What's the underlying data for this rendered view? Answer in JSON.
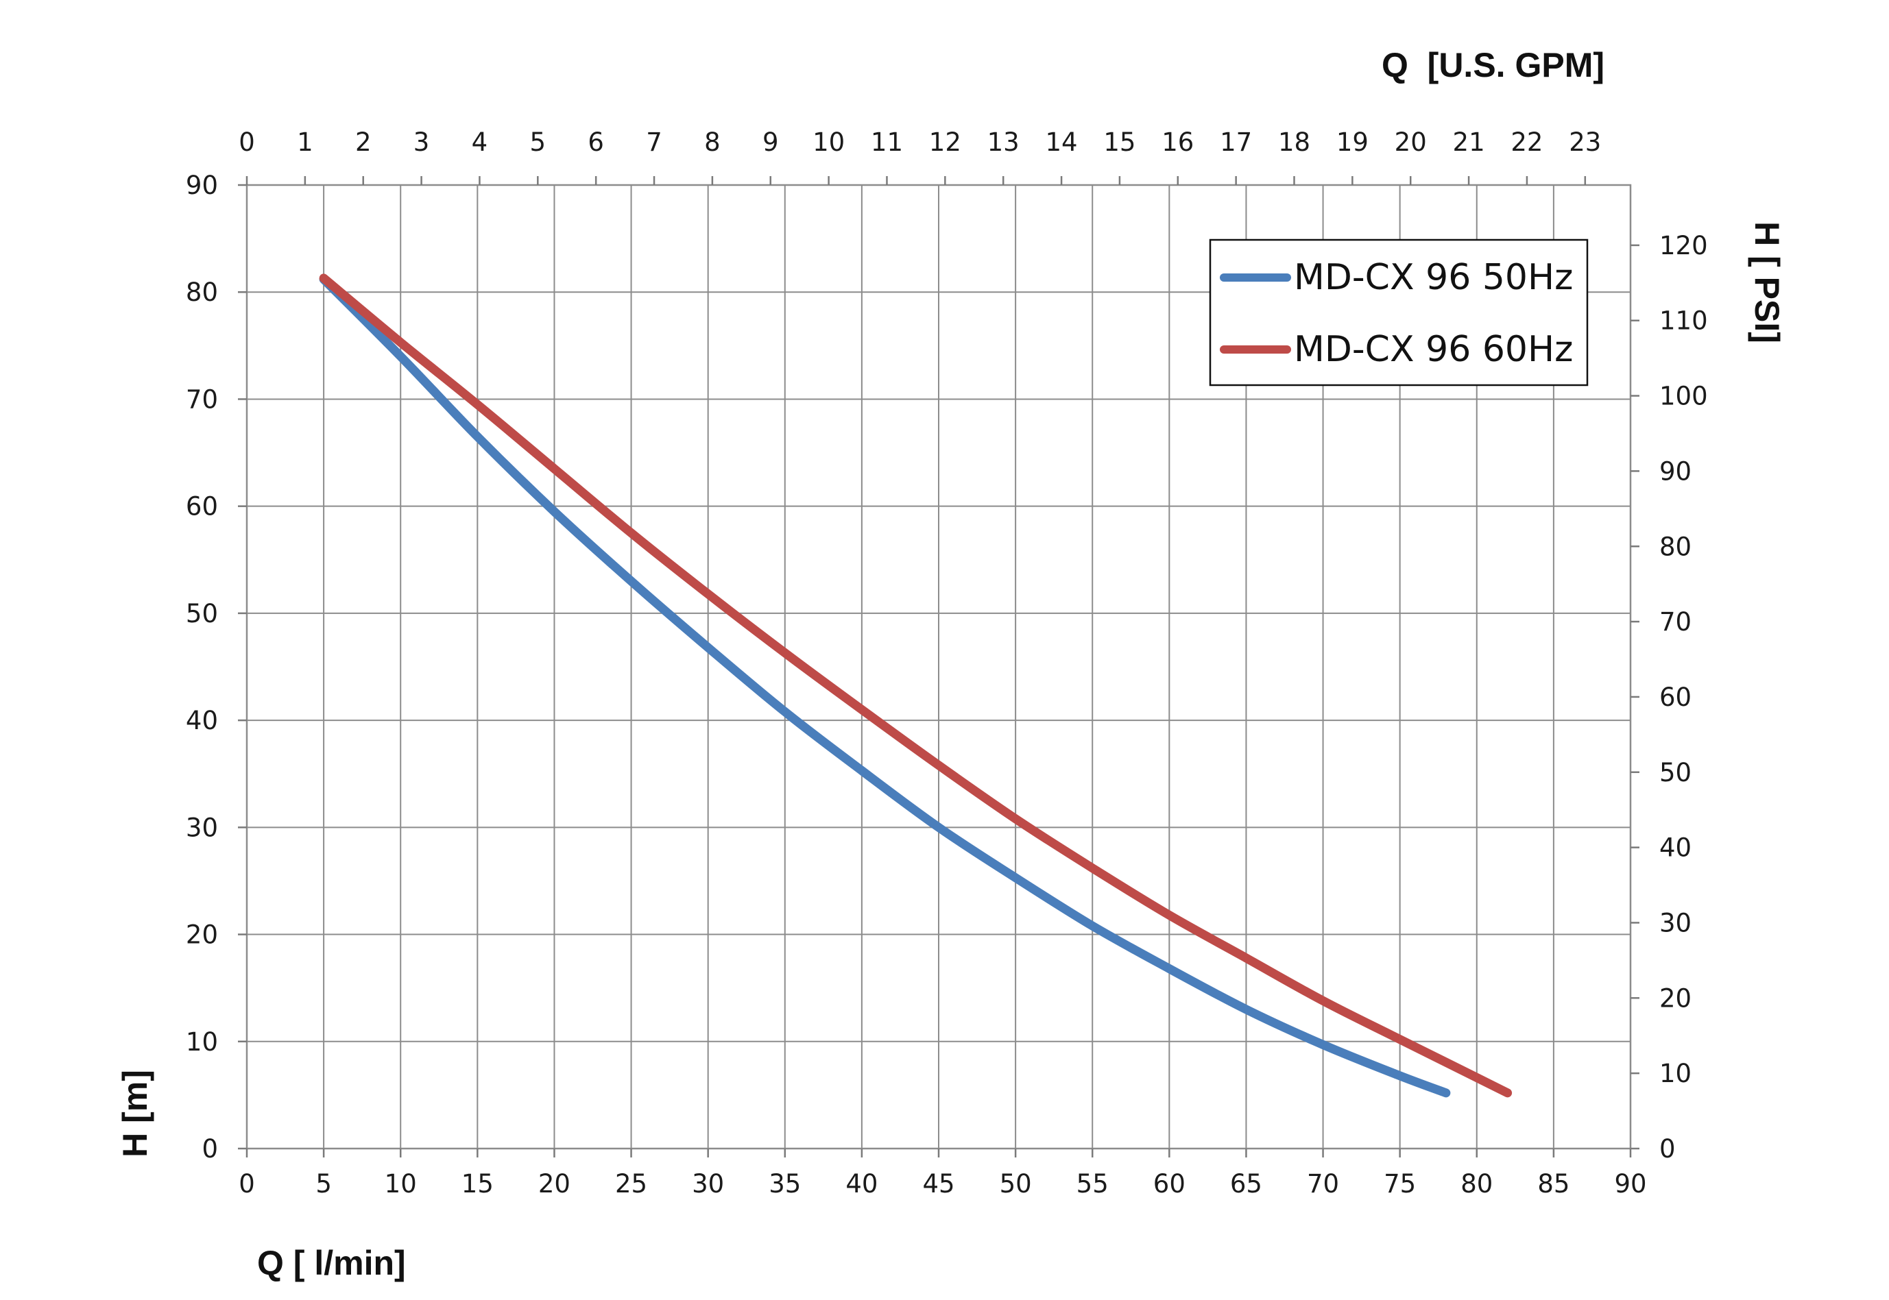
{
  "chart_data": {
    "type": "line",
    "title": "",
    "xlabel": "Q [ l/min]",
    "ylabel": "H [m]",
    "x2label": "Q  [U.S. GPM]",
    "y2label": "H [ PSI]",
    "xlim": [
      0,
      90
    ],
    "ylim": [
      0,
      90
    ],
    "x2lim": [
      0,
      23.78
    ],
    "y2lim": [
      0,
      128
    ],
    "x_ticks": [
      "0",
      "5",
      "10",
      "15",
      "20",
      "25",
      "30",
      "35",
      "40",
      "45",
      "50",
      "55",
      "60",
      "65",
      "70",
      "75",
      "80",
      "85",
      "90"
    ],
    "y_ticks": [
      "0",
      "10",
      "20",
      "30",
      "40",
      "50",
      "60",
      "70",
      "80",
      "90"
    ],
    "x2_ticks": [
      "0",
      "1",
      "2",
      "3",
      "4",
      "5",
      "6",
      "7",
      "8",
      "9",
      "10",
      "11",
      "12",
      "13",
      "14",
      "15",
      "16",
      "17",
      "18",
      "19",
      "20",
      "21",
      "22",
      "23"
    ],
    "y2_ticks": [
      "0",
      "10",
      "20",
      "30",
      "40",
      "50",
      "60",
      "70",
      "80",
      "90",
      "100",
      "110",
      "120"
    ],
    "grid": true,
    "legend_position": "top-right",
    "series": [
      {
        "name": "MD-CX 96 50Hz",
        "color": "#4a7ebb",
        "x": [
          5,
          10,
          15,
          20,
          25,
          30,
          35,
          40,
          45,
          50,
          55,
          60,
          65,
          70,
          75,
          78
        ],
        "y": [
          81.2,
          74,
          66.5,
          59.5,
          53,
          46.8,
          40.8,
          35.3,
          30,
          25.3,
          20.8,
          16.8,
          13,
          9.7,
          6.8,
          5.2
        ]
      },
      {
        "name": "MD-CX 96 60Hz",
        "color": "#be4b48",
        "x": [
          5,
          10,
          15,
          20,
          25,
          30,
          35,
          40,
          45,
          50,
          55,
          60,
          65,
          70,
          75,
          82
        ],
        "y": [
          81.3,
          75.3,
          69.5,
          63.5,
          57.5,
          51.8,
          46.3,
          41,
          35.8,
          30.8,
          26.2,
          21.8,
          17.8,
          13.8,
          10.2,
          5.2
        ]
      }
    ]
  }
}
